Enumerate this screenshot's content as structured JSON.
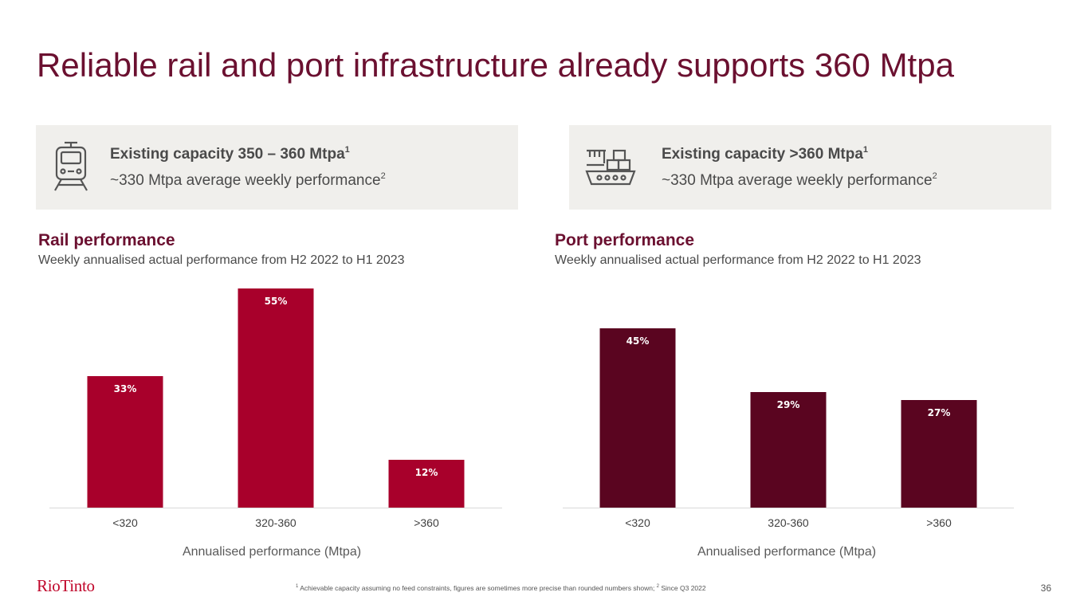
{
  "title": "Reliable rail and port infrastructure already supports 360 Mtpa",
  "rail_box": {
    "line1": "Existing capacity 350 – 360 Mtpa",
    "line1_sup": "1",
    "line2": "~330 Mtpa average weekly performance",
    "line2_sup": "2",
    "icon": "train-icon"
  },
  "port_box": {
    "line1": "Existing capacity >360 Mtpa",
    "line1_sup": "1",
    "line2": "~330 Mtpa average weekly performance",
    "line2_sup": "2",
    "icon": "cargo-ship-icon"
  },
  "rail_section": {
    "title": "Rail performance",
    "subtitle": "Weekly annualised actual performance from H2 2022 to H1 2023"
  },
  "port_section": {
    "title": "Port performance",
    "subtitle": "Weekly annualised actual performance from H2 2022 to H1 2023"
  },
  "chart_data": [
    {
      "type": "bar",
      "title": "Rail performance",
      "categories": [
        "<320",
        "320-360",
        ">360"
      ],
      "values": [
        33,
        55,
        12
      ],
      "value_labels": [
        "33%",
        "55%",
        "12%"
      ],
      "xlabel": "Annualised performance (Mtpa)",
      "ylabel": "",
      "ylim": [
        0,
        55
      ],
      "color": "#a8002b"
    },
    {
      "type": "bar",
      "title": "Port performance",
      "categories": [
        "<320",
        "320-360",
        ">360"
      ],
      "values": [
        45,
        29,
        27
      ],
      "value_labels": [
        "45%",
        "29%",
        "27%"
      ],
      "xlabel": "Annualised performance (Mtpa)",
      "ylabel": "",
      "ylim": [
        0,
        55
      ],
      "color": "#5a0520"
    }
  ],
  "footer": {
    "logo": "RioTinto",
    "footnote_1_marker": "1",
    "footnote_1": " Achievable capacity assuming no feed constraints, figures are sometimes more precise than rounded numbers shown; ",
    "footnote_2_marker": "2",
    "footnote_2": " Since Q3 2022",
    "page_number": "36"
  },
  "colors": {
    "title": "#6b1030",
    "rail_bar": "#a8002b",
    "port_bar": "#5a0520",
    "box_bg": "#f0efec",
    "logo": "#c0072b"
  }
}
